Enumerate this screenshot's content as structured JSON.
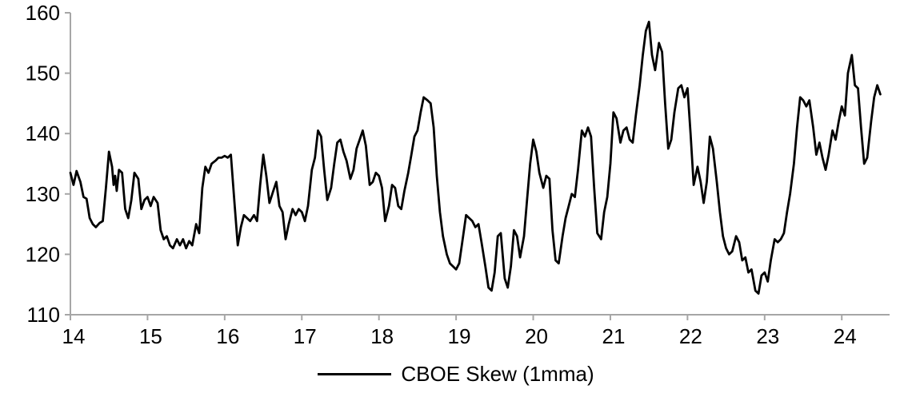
{
  "chart_data": {
    "type": "line",
    "title": "",
    "xlabel": "",
    "ylabel": "",
    "xlim": [
      14,
      24.62
    ],
    "ylim": [
      110,
      160
    ],
    "x_ticks": [
      14,
      15,
      16,
      17,
      18,
      19,
      20,
      21,
      22,
      23,
      24
    ],
    "y_ticks": [
      110,
      120,
      130,
      140,
      150,
      160
    ],
    "grid": false,
    "legend_position": "bottom",
    "axis_color": "#a6a6a6",
    "series": [
      {
        "name": "CBOE Skew (1mma)",
        "color": "#000000",
        "line_width": 2.8,
        "points": [
          [
            14.0,
            133.5
          ],
          [
            14.04,
            131.5
          ],
          [
            14.08,
            133.8
          ],
          [
            14.13,
            132
          ],
          [
            14.17,
            129.5
          ],
          [
            14.21,
            129.2
          ],
          [
            14.25,
            126
          ],
          [
            14.29,
            125
          ],
          [
            14.33,
            124.5
          ],
          [
            14.38,
            125.2
          ],
          [
            14.42,
            125.5
          ],
          [
            14.46,
            131
          ],
          [
            14.5,
            137
          ],
          [
            14.54,
            134.5
          ],
          [
            14.56,
            131.5
          ],
          [
            14.58,
            133
          ],
          [
            14.6,
            130.5
          ],
          [
            14.63,
            134
          ],
          [
            14.67,
            133.5
          ],
          [
            14.71,
            127.5
          ],
          [
            14.75,
            126
          ],
          [
            14.79,
            129
          ],
          [
            14.83,
            133.5
          ],
          [
            14.88,
            132.5
          ],
          [
            14.92,
            127.5
          ],
          [
            14.96,
            129
          ],
          [
            15.0,
            129.5
          ],
          [
            15.04,
            128
          ],
          [
            15.08,
            129.5
          ],
          [
            15.13,
            128.5
          ],
          [
            15.17,
            124
          ],
          [
            15.21,
            122.5
          ],
          [
            15.25,
            123
          ],
          [
            15.29,
            121.5
          ],
          [
            15.33,
            121
          ],
          [
            15.38,
            122.5
          ],
          [
            15.42,
            121.5
          ],
          [
            15.46,
            122.5
          ],
          [
            15.5,
            121
          ],
          [
            15.54,
            122.2
          ],
          [
            15.58,
            121.5
          ],
          [
            15.63,
            125
          ],
          [
            15.67,
            123.5
          ],
          [
            15.71,
            131
          ],
          [
            15.75,
            134.5
          ],
          [
            15.79,
            133.5
          ],
          [
            15.83,
            135
          ],
          [
            15.88,
            135.5
          ],
          [
            15.92,
            136
          ],
          [
            15.96,
            136
          ],
          [
            16.0,
            136.3
          ],
          [
            16.04,
            136
          ],
          [
            16.08,
            136.5
          ],
          [
            16.13,
            128
          ],
          [
            16.17,
            121.5
          ],
          [
            16.21,
            124.5
          ],
          [
            16.25,
            126.5
          ],
          [
            16.29,
            126
          ],
          [
            16.33,
            125.5
          ],
          [
            16.38,
            126.5
          ],
          [
            16.42,
            125.5
          ],
          [
            16.46,
            131.5
          ],
          [
            16.5,
            136.5
          ],
          [
            16.54,
            133
          ],
          [
            16.58,
            128.5
          ],
          [
            16.63,
            130.5
          ],
          [
            16.67,
            132
          ],
          [
            16.71,
            128
          ],
          [
            16.75,
            127
          ],
          [
            16.79,
            122.5
          ],
          [
            16.83,
            125
          ],
          [
            16.88,
            127.5
          ],
          [
            16.92,
            126.5
          ],
          [
            16.96,
            127.5
          ],
          [
            17.0,
            127
          ],
          [
            17.04,
            125.5
          ],
          [
            17.08,
            128
          ],
          [
            17.13,
            134
          ],
          [
            17.17,
            136
          ],
          [
            17.21,
            140.5
          ],
          [
            17.25,
            139.5
          ],
          [
            17.29,
            134
          ],
          [
            17.33,
            129
          ],
          [
            17.38,
            131
          ],
          [
            17.42,
            135
          ],
          [
            17.46,
            138.5
          ],
          [
            17.5,
            139
          ],
          [
            17.54,
            137
          ],
          [
            17.58,
            135.5
          ],
          [
            17.63,
            132.5
          ],
          [
            17.67,
            134
          ],
          [
            17.71,
            137.5
          ],
          [
            17.75,
            139
          ],
          [
            17.79,
            140.5
          ],
          [
            17.83,
            138
          ],
          [
            17.88,
            131.5
          ],
          [
            17.92,
            132
          ],
          [
            17.96,
            133.5
          ],
          [
            18.0,
            133
          ],
          [
            18.04,
            131
          ],
          [
            18.08,
            125.5
          ],
          [
            18.13,
            128
          ],
          [
            18.17,
            131.5
          ],
          [
            18.21,
            131
          ],
          [
            18.25,
            128
          ],
          [
            18.29,
            127.5
          ],
          [
            18.33,
            130.5
          ],
          [
            18.38,
            133.5
          ],
          [
            18.42,
            136.5
          ],
          [
            18.46,
            139.5
          ],
          [
            18.5,
            140.5
          ],
          [
            18.54,
            143.5
          ],
          [
            18.58,
            146
          ],
          [
            18.63,
            145.5
          ],
          [
            18.67,
            145
          ],
          [
            18.71,
            141
          ],
          [
            18.75,
            133
          ],
          [
            18.79,
            127
          ],
          [
            18.83,
            123
          ],
          [
            18.88,
            120
          ],
          [
            18.92,
            118.5
          ],
          [
            18.96,
            118
          ],
          [
            19.0,
            117.5
          ],
          [
            19.04,
            118.5
          ],
          [
            19.08,
            122
          ],
          [
            19.13,
            126.5
          ],
          [
            19.17,
            126
          ],
          [
            19.21,
            125.5
          ],
          [
            19.25,
            124.5
          ],
          [
            19.29,
            125
          ],
          [
            19.33,
            122
          ],
          [
            19.38,
            118
          ],
          [
            19.42,
            114.5
          ],
          [
            19.46,
            114
          ],
          [
            19.5,
            117
          ],
          [
            19.54,
            123
          ],
          [
            19.58,
            123.5
          ],
          [
            19.63,
            116
          ],
          [
            19.67,
            114.5
          ],
          [
            19.71,
            118
          ],
          [
            19.75,
            124
          ],
          [
            19.79,
            123
          ],
          [
            19.83,
            119.5
          ],
          [
            19.88,
            123
          ],
          [
            19.92,
            129
          ],
          [
            19.96,
            135
          ],
          [
            20.0,
            139
          ],
          [
            20.04,
            137
          ],
          [
            20.08,
            133.5
          ],
          [
            20.13,
            131
          ],
          [
            20.17,
            133
          ],
          [
            20.21,
            132.5
          ],
          [
            20.25,
            124
          ],
          [
            20.29,
            119
          ],
          [
            20.33,
            118.5
          ],
          [
            20.38,
            123
          ],
          [
            20.42,
            126
          ],
          [
            20.46,
            128
          ],
          [
            20.5,
            130
          ],
          [
            20.54,
            129.5
          ],
          [
            20.58,
            134
          ],
          [
            20.63,
            140.5
          ],
          [
            20.67,
            139.5
          ],
          [
            20.71,
            141
          ],
          [
            20.75,
            139.5
          ],
          [
            20.79,
            131
          ],
          [
            20.83,
            123.5
          ],
          [
            20.88,
            122.5
          ],
          [
            20.92,
            127
          ],
          [
            20.96,
            129.5
          ],
          [
            21.0,
            135
          ],
          [
            21.04,
            143.5
          ],
          [
            21.08,
            142.5
          ],
          [
            21.13,
            138.5
          ],
          [
            21.17,
            140.5
          ],
          [
            21.21,
            141
          ],
          [
            21.25,
            139
          ],
          [
            21.29,
            138.5
          ],
          [
            21.33,
            143
          ],
          [
            21.38,
            148
          ],
          [
            21.42,
            153
          ],
          [
            21.46,
            157
          ],
          [
            21.5,
            158.5
          ],
          [
            21.54,
            153
          ],
          [
            21.58,
            150.5
          ],
          [
            21.63,
            155
          ],
          [
            21.67,
            153.5
          ],
          [
            21.71,
            145
          ],
          [
            21.75,
            137.5
          ],
          [
            21.79,
            139
          ],
          [
            21.83,
            143.5
          ],
          [
            21.88,
            147.5
          ],
          [
            21.92,
            148
          ],
          [
            21.96,
            146
          ],
          [
            22.0,
            147.5
          ],
          [
            22.04,
            140
          ],
          [
            22.08,
            131.5
          ],
          [
            22.13,
            134.5
          ],
          [
            22.17,
            132
          ],
          [
            22.21,
            128.5
          ],
          [
            22.25,
            132
          ],
          [
            22.29,
            139.5
          ],
          [
            22.33,
            137.5
          ],
          [
            22.38,
            132
          ],
          [
            22.42,
            127
          ],
          [
            22.46,
            123
          ],
          [
            22.5,
            121
          ],
          [
            22.54,
            120
          ],
          [
            22.58,
            120.5
          ],
          [
            22.63,
            123
          ],
          [
            22.67,
            122
          ],
          [
            22.71,
            119
          ],
          [
            22.75,
            119.5
          ],
          [
            22.79,
            117
          ],
          [
            22.83,
            117.5
          ],
          [
            22.88,
            114
          ],
          [
            22.92,
            113.5
          ],
          [
            22.96,
            116.5
          ],
          [
            23.0,
            117
          ],
          [
            23.04,
            115.5
          ],
          [
            23.08,
            119
          ],
          [
            23.13,
            122.5
          ],
          [
            23.17,
            122
          ],
          [
            23.21,
            122.5
          ],
          [
            23.25,
            123.5
          ],
          [
            23.29,
            127
          ],
          [
            23.33,
            130
          ],
          [
            23.38,
            135
          ],
          [
            23.42,
            141
          ],
          [
            23.46,
            146
          ],
          [
            23.5,
            145.5
          ],
          [
            23.54,
            144.5
          ],
          [
            23.58,
            145.5
          ],
          [
            23.63,
            141
          ],
          [
            23.67,
            136.5
          ],
          [
            23.71,
            138.5
          ],
          [
            23.75,
            136
          ],
          [
            23.79,
            134
          ],
          [
            23.83,
            136.5
          ],
          [
            23.88,
            140.5
          ],
          [
            23.92,
            139
          ],
          [
            23.96,
            142
          ],
          [
            24.0,
            144.5
          ],
          [
            24.04,
            143
          ],
          [
            24.08,
            150
          ],
          [
            24.13,
            153
          ],
          [
            24.17,
            148
          ],
          [
            24.21,
            147.5
          ],
          [
            24.25,
            141
          ],
          [
            24.29,
            135
          ],
          [
            24.33,
            136
          ],
          [
            24.38,
            142
          ],
          [
            24.42,
            146
          ],
          [
            24.46,
            148
          ],
          [
            24.5,
            146.5
          ]
        ]
      }
    ],
    "legend": [
      {
        "label": "CBOE Skew (1mma)",
        "color": "#000000"
      }
    ]
  }
}
